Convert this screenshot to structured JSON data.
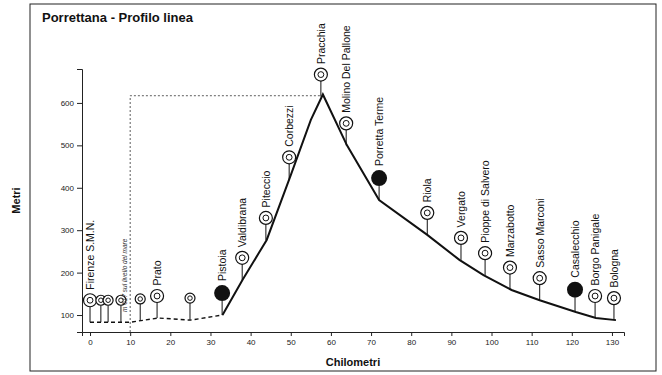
{
  "chart_data": {
    "type": "line",
    "title": "Porrettana - Profilo linea",
    "x_label": "Chilometri",
    "y_label": "Metri",
    "xlim": [
      -2,
      133
    ],
    "ylim": [
      60,
      680
    ],
    "xticks": [
      0,
      10,
      20,
      30,
      40,
      50,
      60,
      70,
      80,
      90,
      100,
      110,
      120,
      130
    ],
    "yticks": [
      100,
      200,
      300,
      400,
      500,
      600
    ],
    "grid": false,
    "color": "#111111",
    "x": [
      0,
      10,
      17,
      25,
      33,
      38,
      44,
      50,
      55,
      58,
      64,
      72,
      84,
      92,
      98,
      105,
      112,
      121,
      126,
      131
    ],
    "series": [
      {
        "line_style": "dashed",
        "values": [
          83,
          83,
          93,
          88,
          100,
          null,
          null,
          null,
          null,
          null,
          null,
          null,
          null,
          null,
          null,
          null,
          null,
          null,
          null,
          null
        ]
      },
      {
        "line_style": "solid",
        "values": [
          null,
          null,
          null,
          null,
          100,
          183,
          277,
          430,
          560,
          620,
          500,
          371,
          289,
          230,
          194,
          159,
          135,
          107,
          93,
          88
        ]
      }
    ],
    "stations": [
      {
        "label": "Firenze S.M.N.",
        "x": 0,
        "y": 83,
        "marker": "ring"
      },
      {
        "label": null,
        "x": 2.7,
        "y": 83,
        "marker": "small"
      },
      {
        "label": null,
        "x": 4.5,
        "y": 83,
        "marker": "small"
      },
      {
        "label": null,
        "x": 7.7,
        "y": 83,
        "marker": "small"
      },
      {
        "label": null,
        "x": 12.5,
        "y": 86,
        "marker": "small"
      },
      {
        "label": "Prato",
        "x": 16.7,
        "y": 93,
        "marker": "ring"
      },
      {
        "label": null,
        "x": 24.9,
        "y": 88,
        "marker": "small"
      },
      {
        "label": "Pistoia",
        "x": 32.9,
        "y": 100,
        "marker": "filled"
      },
      {
        "label": "Valdibrana",
        "x": 37.9,
        "y": 183,
        "marker": "ring"
      },
      {
        "label": "Piteccio",
        "x": 43.8,
        "y": 277,
        "marker": "ring"
      },
      {
        "label": "Corbezzi",
        "x": 49.6,
        "y": 420,
        "marker": "ring"
      },
      {
        "label": "Pracchia",
        "x": 57.5,
        "y": 615,
        "marker": "ring"
      },
      {
        "label": "Molino Del Pallone",
        "x": 63.8,
        "y": 500,
        "marker": "ring"
      },
      {
        "label": "Porretta Terme",
        "x": 72,
        "y": 371,
        "marker": "filled"
      },
      {
        "label": "Riola",
        "x": 84,
        "y": 289,
        "marker": "ring"
      },
      {
        "label": "Vergato",
        "x": 92.4,
        "y": 230,
        "marker": "ring"
      },
      {
        "label": "Pioppe di Salvero",
        "x": 98.4,
        "y": 194,
        "marker": "ring"
      },
      {
        "label": "Marzabotto",
        "x": 104.6,
        "y": 160,
        "marker": "ring"
      },
      {
        "label": "Sasso Marconi",
        "x": 112,
        "y": 135,
        "marker": "ring"
      },
      {
        "label": "Casalecchio",
        "x": 120.8,
        "y": 108,
        "marker": "filled"
      },
      {
        "label": "Borgo Panigale",
        "x": 125.8,
        "y": 93,
        "marker": "ring"
      },
      {
        "label": "Bologna",
        "x": 130.5,
        "y": 88,
        "marker": "ring"
      }
    ],
    "annotations": [
      {
        "text": "m 617 sul livello del mare",
        "x": 10,
        "y": 617
      }
    ]
  }
}
